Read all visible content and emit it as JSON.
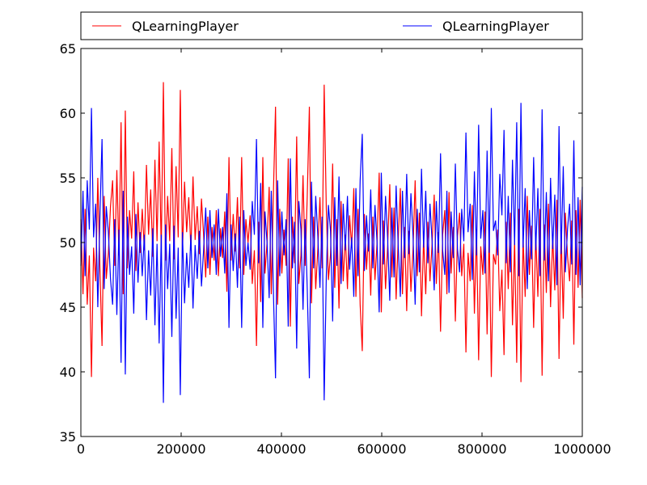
{
  "chart_data": {
    "type": "line",
    "title": "",
    "xlabel": "",
    "ylabel": "",
    "xlim": [
      0,
      1000000
    ],
    "ylim": [
      35,
      65
    ],
    "x_ticks": [
      0,
      200000,
      400000,
      600000,
      800000,
      1000000
    ],
    "x_tick_labels": [
      "0",
      "200000",
      "400000",
      "600000",
      "800000",
      "1000000"
    ],
    "y_ticks": [
      35,
      40,
      45,
      50,
      55,
      60,
      65
    ],
    "y_tick_labels": [
      "35",
      "40",
      "45",
      "50",
      "55",
      "60",
      "65"
    ],
    "grid": false,
    "legend_position": "top (above plot, two columns)",
    "series": [
      {
        "name": "QLearningPlayer",
        "color": "#ff0000",
        "x_start": 0,
        "x_end": 1000000,
        "values": [
          51.8,
          46.0,
          52.6,
          45.2,
          49.0,
          39.6,
          49.6,
          47.0,
          55.0,
          48.0,
          42.0,
          53.6,
          47.2,
          49.2,
          52.8,
          54.8,
          48.2,
          55.6,
          49.0,
          59.3,
          46.0,
          60.2,
          48.0,
          52.5,
          50.3,
          55.5,
          47.8,
          53.1,
          49.2,
          52.6,
          49.4,
          56.0,
          50.6,
          54.1,
          48.9,
          56.4,
          50.1,
          57.8,
          49.4,
          62.4,
          48.6,
          53.6,
          50.1,
          57.3,
          48.7,
          55.9,
          50.4,
          61.8,
          49.2,
          54.7,
          50.8,
          53.5,
          49.4,
          55.1,
          50.2,
          52.8,
          49.1,
          53.4,
          50.6,
          47.3,
          52.0,
          47.5,
          51.2,
          48.6,
          52.5,
          47.4,
          51.1,
          48.8,
          52.4,
          46.2,
          56.6,
          48.6,
          52.2,
          49.3,
          53.5,
          48.0,
          56.6,
          47.5,
          51.8,
          50.0,
          52.1,
          46.8,
          49.4,
          42.0,
          51.6,
          45.4,
          56.6,
          47.6,
          50.0,
          54.3,
          46.0,
          53.8,
          60.5,
          45.2,
          52.6,
          47.6,
          51.0,
          48.2,
          56.5,
          43.5,
          52.0,
          48.4,
          58.2,
          46.8,
          49.0,
          55.2,
          48.2,
          53.6,
          60.5,
          45.3,
          52.0,
          46.4,
          49.5,
          53.5,
          48.0,
          62.2,
          52.6,
          47.1,
          49.1,
          56.1,
          46.5,
          51.8,
          44.9,
          53.2,
          47.0,
          50.6,
          46.4,
          52.1,
          49.6,
          54.2,
          45.8,
          52.6,
          45.2,
          41.6,
          52.2,
          47.9,
          50.7,
          45.9,
          52.0,
          47.1,
          50.0,
          55.4,
          44.6,
          51.7,
          46.4,
          49.7,
          54.5,
          47.3,
          52.7,
          45.6,
          50.3,
          54.2,
          46.0,
          51.2,
          44.7,
          50.9,
          46.2,
          49.5,
          54.8,
          47.4,
          52.3,
          44.3,
          50.4,
          46.0,
          51.6,
          47.0,
          49.9,
          53.7,
          46.8,
          50.8,
          43.1,
          50.6,
          52.5,
          46.0,
          53.9,
          47.6,
          51.2,
          43.9,
          50.5,
          52.3,
          47.4,
          49.9,
          41.5,
          49.2,
          47.0,
          52.9,
          44.5,
          51.0,
          40.9,
          49.7,
          47.5,
          52.4,
          42.9,
          50.8,
          39.6,
          49.1,
          48.3,
          51.0,
          44.7,
          47.9,
          41.3,
          51.6,
          46.4,
          52.3,
          43.6,
          50.2,
          40.7,
          52.6,
          39.2,
          50.4,
          45.8,
          53.6,
          47.5,
          51.3,
          43.4,
          50.6,
          45.8,
          52.6,
          39.7,
          51.4,
          46.1,
          53.0,
          45.0,
          50.5,
          46.3,
          53.3,
          41.0,
          50.9,
          44.1,
          52.3,
          49.0,
          47.0,
          51.7,
          42.1,
          52.5,
          46.5,
          53.3,
          45.7
        ]
      },
      {
        "name": "QLearningPlayer",
        "color": "#0000ff",
        "x_start": 0,
        "x_end": 1000000,
        "values": [
          48.2,
          54.0,
          47.4,
          54.8,
          51.0,
          60.4,
          50.4,
          53.0,
          45.0,
          52.0,
          58.0,
          46.4,
          52.8,
          50.8,
          47.2,
          45.2,
          51.8,
          44.4,
          51.0,
          40.7,
          54.0,
          39.8,
          52.0,
          47.5,
          49.7,
          44.5,
          52.2,
          46.9,
          50.8,
          47.4,
          50.6,
          44.0,
          49.4,
          45.9,
          51.1,
          43.6,
          49.9,
          42.2,
          50.6,
          37.6,
          51.4,
          46.4,
          49.9,
          42.7,
          51.3,
          44.1,
          49.6,
          38.2,
          50.8,
          45.3,
          49.2,
          46.5,
          50.6,
          44.9,
          49.8,
          47.2,
          50.9,
          46.6,
          49.4,
          52.7,
          48.0,
          52.5,
          48.8,
          51.4,
          47.5,
          52.6,
          48.9,
          51.2,
          47.6,
          53.8,
          43.4,
          51.4,
          47.8,
          50.7,
          46.5,
          52.0,
          43.4,
          52.5,
          48.2,
          50.0,
          47.9,
          53.2,
          50.6,
          58.0,
          48.4,
          54.6,
          43.4,
          52.4,
          50.0,
          45.7,
          54.0,
          46.2,
          39.5,
          54.8,
          47.4,
          52.4,
          49.0,
          51.8,
          43.5,
          56.5,
          48.0,
          51.6,
          41.8,
          53.2,
          51.0,
          44.8,
          51.8,
          46.4,
          39.5,
          54.7,
          48.0,
          53.6,
          50.5,
          46.5,
          52.0,
          37.8,
          47.4,
          52.9,
          50.9,
          43.9,
          53.5,
          48.2,
          55.1,
          46.8,
          53.0,
          49.4,
          53.6,
          47.9,
          50.4,
          45.8,
          54.2,
          47.4,
          54.8,
          58.4,
          47.8,
          52.1,
          49.3,
          54.1,
          48.0,
          52.9,
          50.0,
          44.6,
          55.4,
          48.3,
          53.6,
          50.3,
          45.5,
          52.7,
          47.3,
          54.4,
          49.7,
          45.8,
          54.0,
          48.8,
          55.3,
          49.1,
          53.8,
          50.5,
          45.2,
          52.6,
          47.7,
          55.7,
          49.6,
          54.0,
          48.4,
          53.0,
          50.1,
          46.3,
          53.2,
          49.2,
          56.9,
          49.4,
          47.5,
          54.0,
          46.1,
          52.4,
          48.8,
          56.1,
          49.5,
          47.7,
          52.6,
          50.1,
          58.5,
          50.8,
          53.0,
          47.1,
          55.5,
          49.0,
          59.1,
          50.3,
          52.5,
          47.6,
          57.1,
          49.2,
          60.4,
          50.9,
          51.7,
          49.0,
          55.3,
          52.1,
          58.7,
          48.4,
          53.6,
          47.7,
          56.4,
          49.8,
          59.3,
          47.4,
          60.8,
          49.6,
          54.2,
          46.4,
          52.5,
          48.7,
          56.6,
          49.4,
          54.2,
          47.4,
          60.3,
          48.6,
          53.9,
          47.0,
          55.0,
          49.5,
          53.7,
          46.7,
          59.0,
          49.1,
          55.9,
          47.7,
          51.0,
          53.0,
          48.3,
          57.9,
          47.5,
          53.5,
          46.7,
          54.3
        ]
      }
    ]
  }
}
